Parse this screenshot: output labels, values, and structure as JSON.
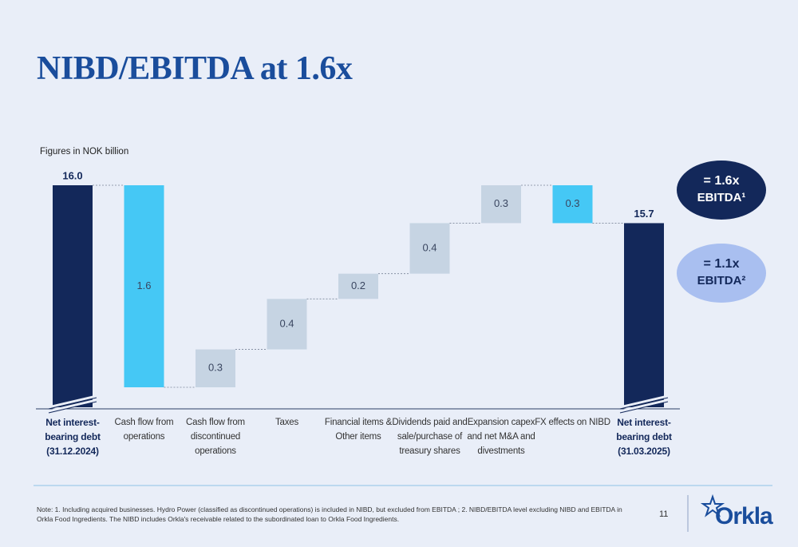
{
  "chart_data": {
    "type": "waterfall",
    "title": "NIBD/EBITDA at 1.6x",
    "subtitle": "Figures in NOK billion",
    "categories": [
      "Net interest-bearing debt (31.12.2024)",
      "Cash flow from operations",
      "Cash flow from discontinued operations",
      "Taxes",
      "Financial items & Other items",
      "Dividends paid and sale/purchase of treasury shares",
      "Expansion capex and net M&A and divestments",
      "FX effects on NIBD",
      "Net interest-bearing debt (31.03.2025)"
    ],
    "values": [
      16.0,
      -1.6,
      0.3,
      0.4,
      0.2,
      0.4,
      0.3,
      -0.3,
      15.7
    ],
    "value_labels": [
      "16.0",
      "1.6",
      "0.3",
      "0.4",
      "0.2",
      "0.4",
      "0.3",
      "0.3",
      "15.7"
    ],
    "total_color": "#13285a",
    "increase_color": "#c6d4e3",
    "decrease_color": "#45c8f5",
    "annotations": [
      {
        "line1": "= 1.6x",
        "line2": "EBITDA¹",
        "color": "#13285a"
      },
      {
        "line1": "= 1.1x",
        "line2": "EBITDA²",
        "color": "#a9bff0"
      }
    ]
  },
  "footer": {
    "note": "Note: 1. Including acquired businesses. Hydro Power (classified as discontinued operations) is included in NIBD, but excluded from EBITDA ; 2. NIBD/EBITDA level excluding NIBD and EBITDA in Orkla Food Ingredients. The NIBD includes Orkla's receivable related to the subordinated loan to Orkla Food Ingredients.",
    "page": "11",
    "logo": "Orkla"
  }
}
